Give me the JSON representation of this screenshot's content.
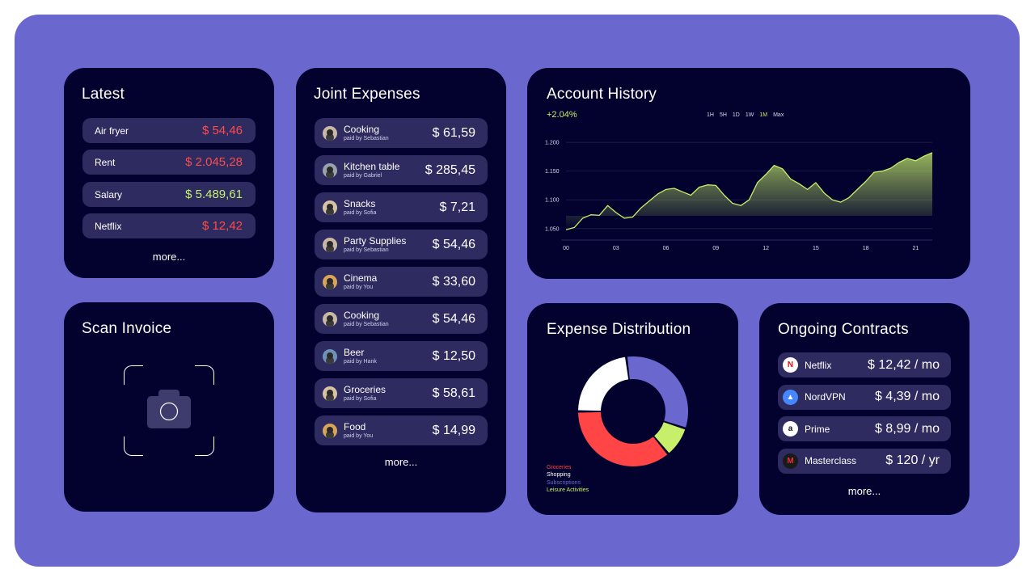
{
  "latest": {
    "title": "Latest",
    "items": [
      {
        "label": "Air fryer",
        "amount": "$ 54,46",
        "type": "neg"
      },
      {
        "label": "Rent",
        "amount": "$ 2.045,28",
        "type": "neg"
      },
      {
        "label": "Salary",
        "amount": "$ 5.489,61",
        "type": "pos"
      },
      {
        "label": "Netflix",
        "amount": "$ 12,42",
        "type": "neg"
      }
    ],
    "more": "more..."
  },
  "scan": {
    "title": "Scan Invoice",
    "icon": "camera-icon"
  },
  "joint": {
    "title": "Joint Expenses",
    "items": [
      {
        "label": "Cooking",
        "paid_by": "paid by Sebastian",
        "amount": "$ 61,59",
        "avatar_color": "#c9b8a6"
      },
      {
        "label": "Kitchen table",
        "paid_by": "paid by Gabriel",
        "amount": "$ 285,45",
        "avatar_color": "#9aa3ad"
      },
      {
        "label": "Snacks",
        "paid_by": "paid by Sofia",
        "amount": "$ 7,21",
        "avatar_color": "#d8c3a4"
      },
      {
        "label": "Party Supplies",
        "paid_by": "paid by Sebastian",
        "amount": "$ 54,46",
        "avatar_color": "#c9b8a6"
      },
      {
        "label": "Cinema",
        "paid_by": "paid by You",
        "amount": "$ 33,60",
        "avatar_color": "#d9a45a"
      },
      {
        "label": "Cooking",
        "paid_by": "paid by Sebastian",
        "amount": "$ 54,46",
        "avatar_color": "#c9b8a6"
      },
      {
        "label": "Beer",
        "paid_by": "paid by Hank",
        "amount": "$ 12,50",
        "avatar_color": "#6f93b8"
      },
      {
        "label": "Groceries",
        "paid_by": "paid by Sofia",
        "amount": "$ 58,61",
        "avatar_color": "#d8c3a4"
      },
      {
        "label": "Food",
        "paid_by": "paid by You",
        "amount": "$ 14,99",
        "avatar_color": "#d9a45a"
      }
    ],
    "more": "more..."
  },
  "history": {
    "title": "Account History",
    "change": "+2.04%",
    "ranges": [
      "1H",
      "5H",
      "1D",
      "1W",
      "1M",
      "Max"
    ],
    "active_range": "1M",
    "accent": "#c7ef6a"
  },
  "distribution": {
    "title": "Expense Distribution",
    "legend": [
      {
        "label": "Groceries",
        "color": "#ff4545"
      },
      {
        "label": "Shopping",
        "color": "#ffffff"
      },
      {
        "label": "Subscriptions",
        "color": "#6a68cf"
      },
      {
        "label": "Leisure Activities",
        "color": "#c7ef6a"
      }
    ]
  },
  "contracts": {
    "title": "Ongoing Contracts",
    "items": [
      {
        "name": "Netflix",
        "amount": "$ 12,42 / mo",
        "icon": "netflix-icon",
        "glyph": "N",
        "bg": "#ffffff",
        "fg": "#e50914"
      },
      {
        "name": "NordVPN",
        "amount": "$ 4,39 / mo",
        "icon": "nordvpn-icon",
        "glyph": "▲",
        "bg": "#4687ff",
        "fg": "#ffffff"
      },
      {
        "name": "Prime",
        "amount": "$ 8,99 / mo",
        "icon": "amazon-icon",
        "glyph": "a",
        "bg": "#ffffff",
        "fg": "#111111"
      },
      {
        "name": "Masterclass",
        "amount": "$ 120 / yr",
        "icon": "masterclass-icon",
        "glyph": "M",
        "bg": "#1a1a1a",
        "fg": "#e0323a"
      }
    ],
    "more": "more..."
  },
  "chart_data": [
    {
      "type": "area",
      "x_ticks": [
        "00",
        "03",
        "06",
        "09",
        "12",
        "15",
        "18",
        "21"
      ],
      "y_ticks": [
        "1.050",
        "1.100",
        "1.150",
        "1.200"
      ],
      "ylim": [
        1030,
        1210
      ],
      "xlim": [
        0,
        22
      ],
      "x": [
        0,
        0.5,
        1,
        1.5,
        2,
        2.5,
        3,
        3.5,
        4,
        4.5,
        5,
        5.5,
        6,
        6.5,
        7,
        7.5,
        8,
        8.5,
        9,
        9.5,
        10,
        10.5,
        11,
        11.5,
        12,
        12.5,
        13,
        13.5,
        14,
        14.5,
        15,
        15.5,
        16,
        16.5,
        17,
        17.5,
        18,
        18.5,
        19,
        19.5,
        20,
        20.5,
        21,
        21.5,
        22
      ],
      "y": [
        1048,
        1052,
        1068,
        1074,
        1073,
        1090,
        1078,
        1068,
        1070,
        1086,
        1098,
        1110,
        1118,
        1120,
        1114,
        1108,
        1122,
        1126,
        1125,
        1108,
        1094,
        1090,
        1100,
        1130,
        1144,
        1160,
        1154,
        1136,
        1128,
        1118,
        1130,
        1112,
        1100,
        1096,
        1104,
        1118,
        1132,
        1148,
        1150,
        1155,
        1165,
        1172,
        1168,
        1176,
        1182
      ],
      "grid": true,
      "series_color": "#c7ef6a"
    },
    {
      "type": "pie",
      "categories": [
        "Groceries",
        "Shopping",
        "Subscriptions",
        "Leisure Activities"
      ],
      "values": [
        36,
        23,
        32,
        9
      ],
      "colors": [
        "#ff4545",
        "#ffffff",
        "#6a68cf",
        "#c7ef6a"
      ],
      "legend": "bottom-left"
    }
  ]
}
